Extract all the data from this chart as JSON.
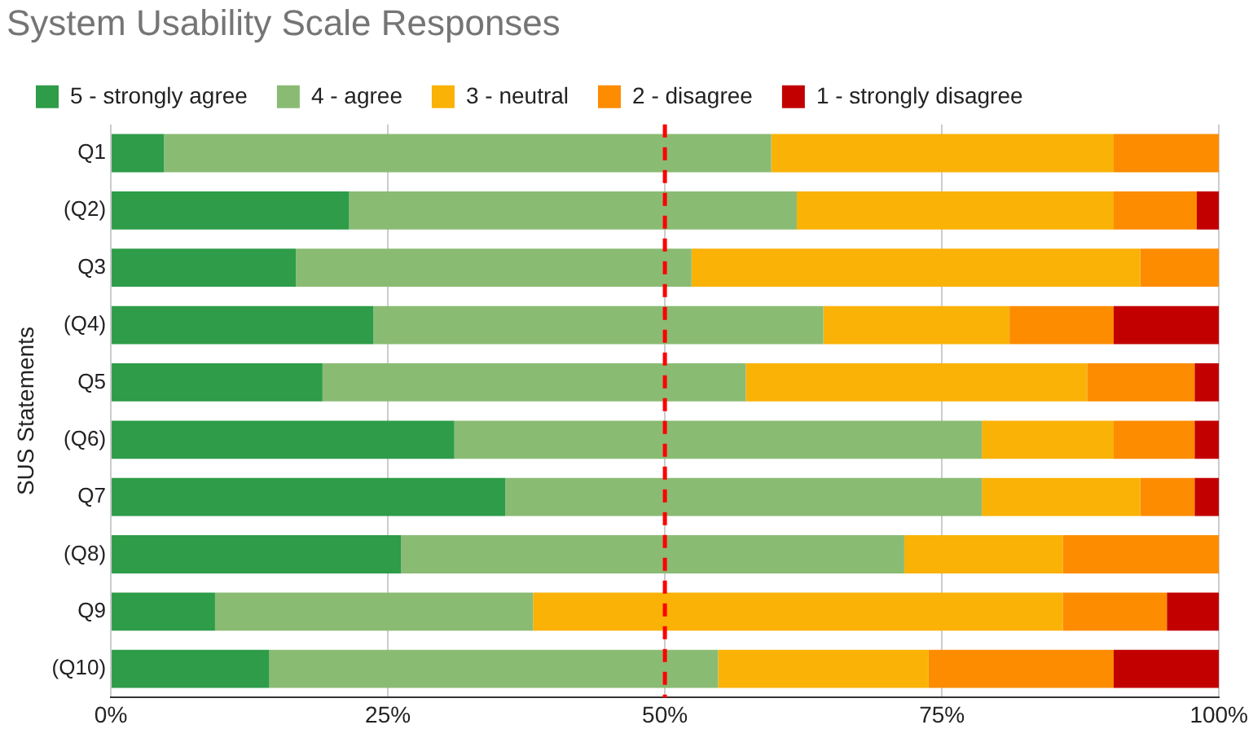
{
  "chart_data": {
    "type": "bar",
    "orientation": "horizontal",
    "stacked": true,
    "title": "System Usability Scale Responses",
    "ylabel": "SUS Statements",
    "categories": [
      "Q1",
      "(Q2)",
      "Q3",
      "(Q4)",
      "Q5",
      "(Q6)",
      "Q7",
      "(Q8)",
      "Q9",
      "(Q10)"
    ],
    "series": [
      {
        "name": "5 - strongly agree",
        "color": "#2e9c48",
        "values": [
          4.8,
          21.5,
          16.7,
          23.7,
          19.1,
          31.0,
          35.6,
          26.2,
          9.4,
          14.3
        ]
      },
      {
        "name": "4 - agree",
        "color": "#8abb73",
        "values": [
          54.8,
          40.4,
          35.7,
          40.6,
          38.2,
          47.6,
          43.0,
          45.4,
          28.7,
          40.5
        ]
      },
      {
        "name": "3 - neutral",
        "color": "#fab207",
        "values": [
          30.9,
          28.6,
          40.5,
          16.8,
          30.8,
          11.9,
          14.3,
          14.3,
          47.8,
          19.0
        ]
      },
      {
        "name": "2 - disagree",
        "color": "#fd8c01",
        "values": [
          9.5,
          7.5,
          7.1,
          9.4,
          9.7,
          7.3,
          4.9,
          14.1,
          9.4,
          16.7
        ]
      },
      {
        "name": "1 - strongly disagree",
        "color": "#c20000",
        "values": [
          0,
          2.0,
          0,
          9.5,
          2.2,
          2.2,
          2.2,
          0,
          4.7,
          9.5
        ]
      }
    ],
    "xlim": [
      0,
      100
    ],
    "xticks": [
      {
        "value": 0,
        "label": "0%"
      },
      {
        "value": 25,
        "label": "25%"
      },
      {
        "value": 50,
        "label": "50%"
      },
      {
        "value": 75,
        "label": "75%"
      },
      {
        "value": 100,
        "label": "100%"
      }
    ],
    "ref_lines": [
      {
        "axis": "x",
        "value": 50,
        "color": "#ff0000",
        "line_style": "dashed"
      }
    ],
    "grid": "x",
    "legend": "top"
  }
}
